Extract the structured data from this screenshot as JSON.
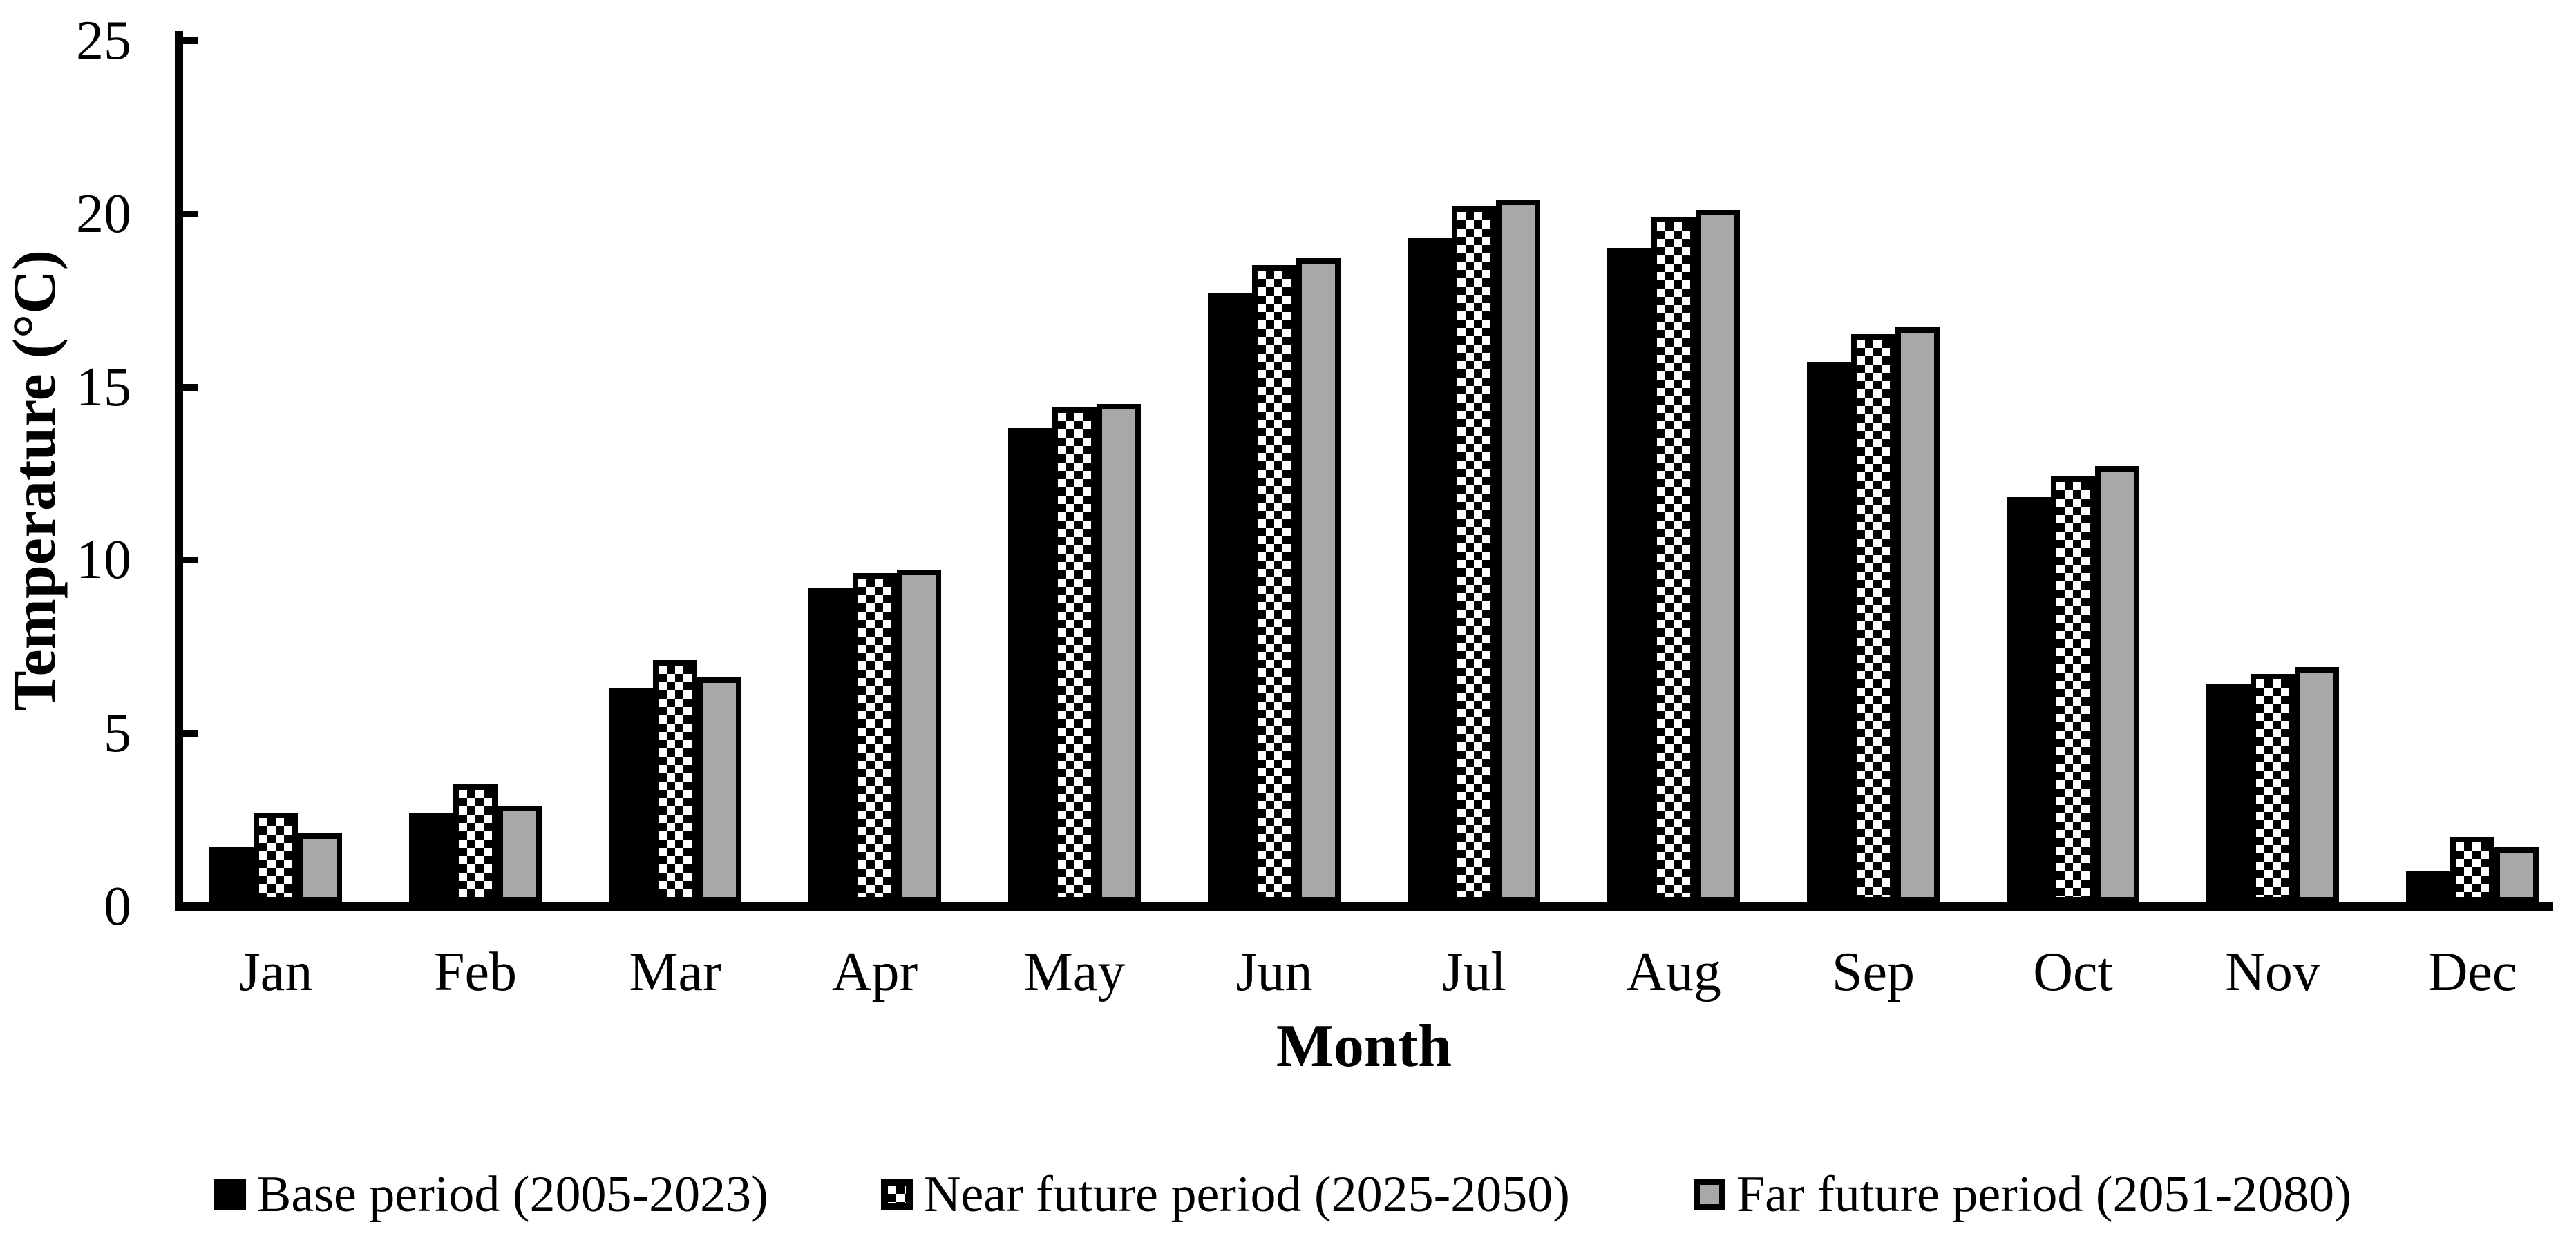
{
  "chart_data": {
    "type": "bar",
    "title": "",
    "xlabel": "Month",
    "ylabel": "Temperature (°C)",
    "categories": [
      "Jan",
      "Feb",
      "Mar",
      "Apr",
      "May",
      "Jun",
      "Jul",
      "Aug",
      "Sep",
      "Oct",
      "Nov",
      "Dec"
    ],
    "series": [
      {
        "name": "Base period (2005-2023)",
        "pattern": "solid-black",
        "values": [
          1.6,
          2.6,
          6.2,
          9.1,
          13.7,
          17.6,
          19.2,
          18.9,
          15.6,
          11.7,
          6.3,
          0.9
        ]
      },
      {
        "name": "Near future period (2025-2050)",
        "pattern": "black-white-checkerboard",
        "values": [
          2.6,
          3.4,
          7.0,
          9.5,
          14.3,
          18.4,
          20.1,
          19.8,
          16.4,
          12.3,
          6.6,
          1.9
        ]
      },
      {
        "name": "Far future period (2051-2080)",
        "pattern": "solid-gray",
        "values": [
          2.0,
          2.8,
          6.5,
          9.6,
          14.4,
          18.6,
          20.3,
          20.0,
          16.6,
          12.6,
          6.8,
          1.6
        ]
      }
    ],
    "ylim": [
      0,
      25
    ],
    "ytick_step": 5,
    "ytick_labels": [
      "0",
      "5",
      "10",
      "15",
      "20",
      "25"
    ],
    "grid": false,
    "legend_position": "bottom",
    "colors": {
      "bar_black": "#000000",
      "bar_gray": "#A8A8A8",
      "checker_fg": "#000000",
      "checker_bg": "#FFFFFF",
      "axis": "#000000",
      "background": "#FFFFFF"
    }
  }
}
